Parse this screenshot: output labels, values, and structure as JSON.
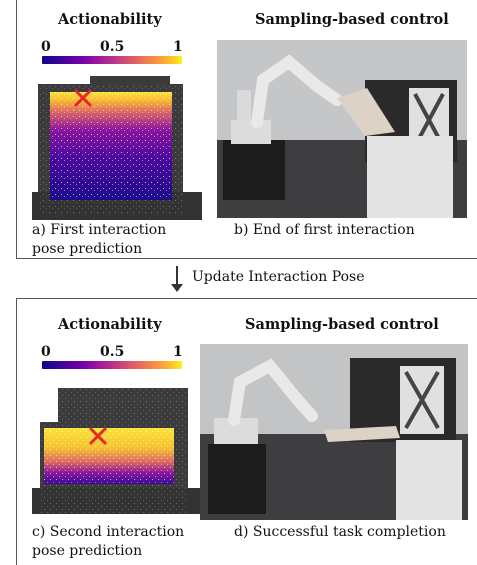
{
  "top_panel": {
    "heading_left": "Actionability",
    "heading_right": "Sampling-based control",
    "colorbar": {
      "min_label": "0",
      "mid_label": "0.5",
      "max_label": "1"
    },
    "caption_left_line1": "a) First interaction",
    "caption_left_line2": "pose prediction",
    "caption_right": "b) End of first interaction"
  },
  "arrow": {
    "label": "Update Interaction Pose"
  },
  "bottom_panel": {
    "heading_left": "Actionability",
    "heading_right": "Sampling-based control",
    "colorbar": {
      "min_label": "0",
      "mid_label": "0.5",
      "max_label": "1"
    },
    "caption_left_line1": "c) Second interaction",
    "caption_left_line2": "pose prediction",
    "caption_right": "d) Successful task completion"
  },
  "colors": {
    "marker": "#e8252b",
    "cloud_background": "#3b3b3b",
    "colormap_low": "#0d0887",
    "colormap_high": "#f0f921"
  }
}
